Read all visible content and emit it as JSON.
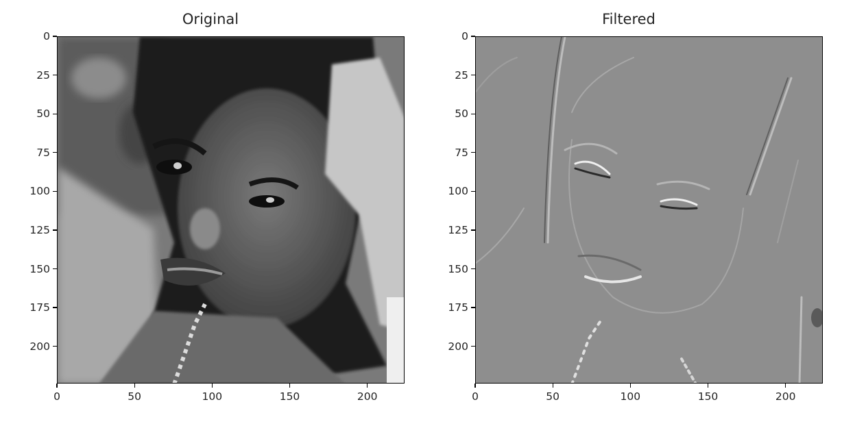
{
  "panels": [
    {
      "title": "Original",
      "image_kind": "grayscale photograph",
      "colors": {
        "bg": "#8a8a8a",
        "dark": "#1a1a1a",
        "skin": "#5a5a5a",
        "light": "#dcdcdc"
      }
    },
    {
      "title": "Filtered",
      "image_kind": "edge-filtered grayscale image",
      "colors": {
        "bg": "#8c8c8c",
        "dark": "#555555",
        "light": "#d8d8d8"
      }
    }
  ],
  "axes": {
    "x_ticks": [
      "0",
      "50",
      "100",
      "150",
      "200"
    ],
    "y_ticks": [
      "0",
      "25",
      "50",
      "75",
      "100",
      "125",
      "150",
      "175",
      "200"
    ],
    "x_tick_values": [
      0,
      50,
      100,
      150,
      200
    ],
    "y_tick_values": [
      0,
      25,
      50,
      75,
      100,
      125,
      150,
      175,
      200
    ],
    "xlim": [
      0,
      224
    ],
    "ylim": [
      224,
      0
    ]
  }
}
